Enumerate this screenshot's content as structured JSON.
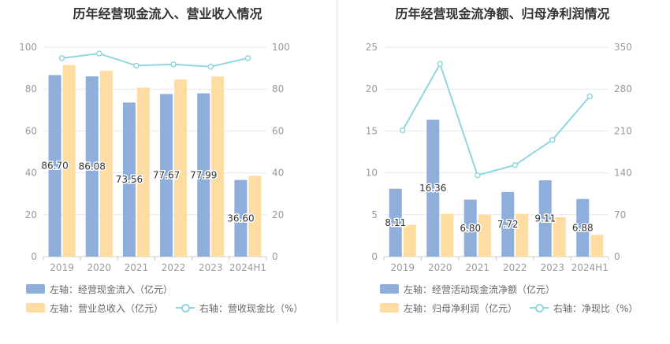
{
  "colors": {
    "bar_blue": "#8eaedb",
    "bar_orange": "#ffdca2",
    "line_cyan": "#8fd7e0",
    "grid": "#e6e9f0",
    "tick": "#999999"
  },
  "chart_data": [
    {
      "type": "bar",
      "title": "历年经营现金流入、营业收入情况",
      "categories": [
        "2019",
        "2020",
        "2021",
        "2022",
        "2023",
        "2024H1"
      ],
      "ylim_left": [
        0,
        100
      ],
      "ylim_right": [
        0,
        100
      ],
      "yticks_left": [
        "0",
        "20",
        "40",
        "60",
        "80",
        "100"
      ],
      "yticks_right": [
        "0",
        "20",
        "40",
        "60",
        "80",
        "100"
      ],
      "series": [
        {
          "name": "左轴：经营现金流入（亿元）",
          "axis": "left",
          "kind": "bar",
          "values": [
            86.7,
            86.08,
            73.56,
            77.67,
            77.99,
            36.6
          ],
          "labels": [
            "86.70",
            "86.08",
            "73.56",
            "77.67",
            "77.99",
            "36.60"
          ]
        },
        {
          "name": "左轴：营业总收入（亿元）",
          "axis": "left",
          "kind": "bar",
          "values": [
            91.5,
            88.8,
            80.7,
            84.6,
            86.0,
            38.6
          ]
        },
        {
          "name": "右轴：营收现金比（%）",
          "axis": "right",
          "kind": "line",
          "values": [
            94.8,
            97.0,
            91.2,
            91.8,
            90.7,
            94.8
          ]
        }
      ],
      "grid": true,
      "legend_position": "bottom"
    },
    {
      "type": "bar",
      "title": "历年经营现金流净额、归母净利润情况",
      "categories": [
        "2019",
        "2020",
        "2021",
        "2022",
        "2023",
        "2024H1"
      ],
      "ylim_left": [
        0,
        25
      ],
      "ylim_right": [
        0,
        350
      ],
      "yticks_left": [
        "0",
        "5",
        "10",
        "15",
        "20",
        "25"
      ],
      "yticks_right": [
        "0",
        "70",
        "140",
        "210",
        "280",
        "350"
      ],
      "series": [
        {
          "name": "左轴：经营活动现金流净额（亿元）",
          "axis": "left",
          "kind": "bar",
          "values": [
            8.11,
            16.36,
            6.8,
            7.72,
            9.11,
            6.88
          ],
          "labels": [
            "8.11",
            "16.36",
            "6.80",
            "7.72",
            "9.11",
            "6.88"
          ]
        },
        {
          "name": "左轴：归母净利润（亿元）",
          "axis": "left",
          "kind": "bar",
          "values": [
            3.8,
            5.1,
            5.0,
            5.1,
            4.7,
            2.6
          ]
        },
        {
          "name": "右轴：净现比（%）",
          "axis": "right",
          "kind": "line",
          "values": [
            211,
            322,
            136,
            153,
            195,
            268
          ]
        }
      ],
      "grid": true,
      "legend_position": "bottom"
    }
  ]
}
